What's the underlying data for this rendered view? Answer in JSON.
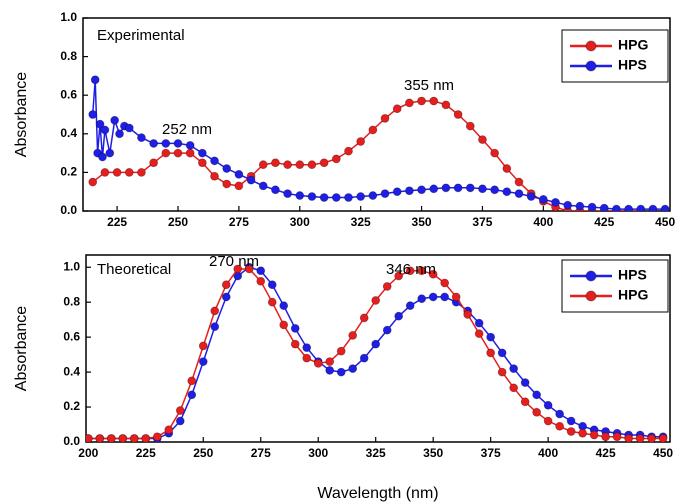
{
  "chart_data": [
    {
      "type": "line",
      "ylabel": "Absorbance",
      "xlim": [
        211,
        452
      ],
      "ylim": [
        0,
        1.0
      ],
      "xticks": [
        225,
        250,
        275,
        300,
        325,
        350,
        375,
        400,
        425,
        450
      ],
      "yticks": [
        {
          "value": 0,
          "label": "0.0"
        },
        0.2,
        0.4,
        0.6,
        0.8,
        {
          "value": 1,
          "label": "1.0"
        }
      ],
      "legend": "upper right",
      "annotations": [
        {
          "text": "Experimental",
          "color": "#e020e0"
        },
        {
          "text": "252 nm",
          "color": "#1a1adb"
        },
        {
          "text": "355 nm",
          "color": "#d42020"
        }
      ],
      "series": [
        {
          "name": "HPG",
          "color": "#e61e1e",
          "x": [
            215,
            220,
            225,
            230,
            235,
            240,
            245,
            250,
            255,
            260,
            265,
            270,
            275,
            280,
            285,
            290,
            295,
            300,
            305,
            310,
            315,
            320,
            325,
            330,
            335,
            340,
            345,
            350,
            355,
            360,
            365,
            370,
            375,
            380,
            385,
            390,
            395,
            400,
            405,
            410,
            415,
            420,
            425,
            430,
            435,
            440
          ],
          "values": [
            0.15,
            0.2,
            0.2,
            0.2,
            0.2,
            0.25,
            0.3,
            0.3,
            0.3,
            0.25,
            0.18,
            0.14,
            0.13,
            0.18,
            0.24,
            0.25,
            0.24,
            0.24,
            0.24,
            0.25,
            0.27,
            0.31,
            0.36,
            0.42,
            0.48,
            0.53,
            0.56,
            0.57,
            0.57,
            0.55,
            0.5,
            0.44,
            0.37,
            0.3,
            0.22,
            0.15,
            0.09,
            0.05,
            0.02,
            0.0,
            0.0,
            0.0,
            0.0,
            0.0,
            0.0,
            0.0
          ]
        },
        {
          "name": "HPS",
          "color": "#1e1ee6",
          "x": [
            215,
            216,
            217,
            218,
            219,
            220,
            222,
            224,
            226,
            228,
            230,
            235,
            240,
            245,
            250,
            255,
            260,
            265,
            270,
            275,
            280,
            285,
            290,
            295,
            300,
            305,
            310,
            315,
            320,
            325,
            330,
            335,
            340,
            345,
            350,
            355,
            360,
            365,
            370,
            375,
            380,
            385,
            390,
            395,
            400,
            405,
            410,
            415,
            420,
            425,
            430,
            435,
            440,
            445,
            450
          ],
          "values": [
            0.5,
            0.68,
            0.3,
            0.45,
            0.28,
            0.42,
            0.3,
            0.47,
            0.4,
            0.44,
            0.43,
            0.38,
            0.35,
            0.35,
            0.35,
            0.34,
            0.3,
            0.26,
            0.22,
            0.19,
            0.16,
            0.13,
            0.11,
            0.09,
            0.08,
            0.075,
            0.07,
            0.07,
            0.07,
            0.075,
            0.08,
            0.09,
            0.1,
            0.105,
            0.11,
            0.115,
            0.12,
            0.12,
            0.12,
            0.115,
            0.11,
            0.1,
            0.09,
            0.075,
            0.06,
            0.045,
            0.03,
            0.025,
            0.02,
            0.015,
            0.01,
            0.01,
            0.01,
            0.01,
            0.01
          ]
        }
      ]
    },
    {
      "type": "line",
      "xlabel": "Wavelength (nm)",
      "ylabel": "Absorbance",
      "xlim": [
        199,
        453
      ],
      "ylim": [
        0,
        1.07
      ],
      "xticks": [
        200,
        225,
        250,
        275,
        300,
        325,
        350,
        375,
        400,
        425,
        450
      ],
      "yticks": [
        {
          "value": 0,
          "label": "0.0"
        },
        0.2,
        0.4,
        0.6,
        0.8,
        {
          "value": 1,
          "label": "1.0"
        }
      ],
      "legend": "upper right",
      "annotations": [
        {
          "text": "Theoretical",
          "color": "#e020e0"
        },
        {
          "text": "270 nm",
          "color": "#1a1adb"
        },
        {
          "text": "346 nm",
          "color": "#d42020"
        }
      ],
      "series": [
        {
          "name": "HPS",
          "color": "#1e1ee6",
          "x": [
            200,
            205,
            210,
            215,
            220,
            225,
            230,
            235,
            240,
            245,
            250,
            255,
            260,
            265,
            270,
            275,
            280,
            285,
            290,
            295,
            300,
            305,
            310,
            315,
            320,
            325,
            330,
            335,
            340,
            345,
            350,
            355,
            360,
            365,
            370,
            375,
            380,
            385,
            390,
            395,
            400,
            405,
            410,
            415,
            420,
            425,
            430,
            435,
            440,
            445,
            450
          ],
          "values": [
            0.02,
            0.02,
            0.02,
            0.02,
            0.02,
            0.02,
            0.02,
            0.05,
            0.12,
            0.27,
            0.46,
            0.66,
            0.83,
            0.95,
            1.0,
            0.98,
            0.9,
            0.78,
            0.65,
            0.54,
            0.46,
            0.41,
            0.4,
            0.42,
            0.48,
            0.56,
            0.64,
            0.72,
            0.78,
            0.82,
            0.83,
            0.83,
            0.8,
            0.75,
            0.68,
            0.6,
            0.51,
            0.42,
            0.34,
            0.27,
            0.21,
            0.16,
            0.12,
            0.09,
            0.07,
            0.06,
            0.05,
            0.04,
            0.04,
            0.03,
            0.03
          ]
        },
        {
          "name": "HPG",
          "color": "#e61e1e",
          "x": [
            200,
            205,
            210,
            215,
            220,
            225,
            230,
            235,
            240,
            245,
            250,
            255,
            260,
            265,
            270,
            275,
            280,
            285,
            290,
            295,
            300,
            305,
            310,
            315,
            320,
            325,
            330,
            335,
            340,
            345,
            350,
            355,
            360,
            365,
            370,
            375,
            380,
            385,
            390,
            395,
            400,
            405,
            410,
            415,
            420,
            425,
            430,
            435,
            440,
            445,
            450
          ],
          "values": [
            0.02,
            0.02,
            0.02,
            0.02,
            0.02,
            0.02,
            0.03,
            0.07,
            0.18,
            0.35,
            0.55,
            0.75,
            0.9,
            0.99,
            0.99,
            0.92,
            0.8,
            0.67,
            0.56,
            0.48,
            0.45,
            0.46,
            0.52,
            0.61,
            0.71,
            0.81,
            0.89,
            0.95,
            0.98,
            0.98,
            0.96,
            0.91,
            0.83,
            0.73,
            0.62,
            0.51,
            0.4,
            0.31,
            0.23,
            0.17,
            0.12,
            0.09,
            0.06,
            0.05,
            0.04,
            0.03,
            0.03,
            0.02,
            0.02,
            0.02,
            0.02
          ]
        }
      ]
    }
  ]
}
